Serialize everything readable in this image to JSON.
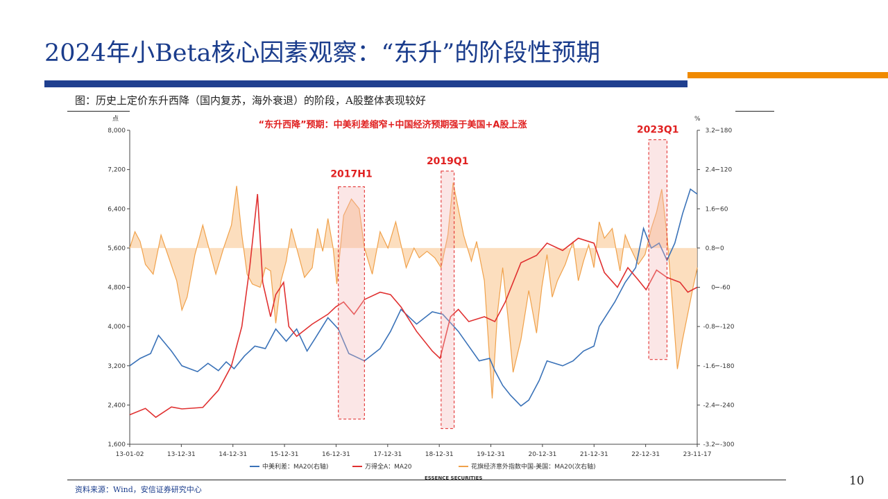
{
  "slide": {
    "title": "2024年小Beta核心因素观察：“东升”的阶段性预期",
    "caption": "图：历史上定价东升西降（国内复苏，海外衰退）的阶段，A股整体表现较好",
    "source": "资料来源：Wind，安信证券研究中心",
    "page_number": "10",
    "watermark": "ESSENCE SECURITIES"
  },
  "colors": {
    "title": "#1a3c8c",
    "blue_bar": "#1f3f8f",
    "orange_bar": "#f08a00",
    "spread_line": "#3a72b8",
    "index_line": "#e03030",
    "citi_line": "#f0a14a",
    "citi_fill": "#fbd3a8",
    "annotation": "#e02020"
  },
  "chart_data": {
    "type": "line",
    "headline": "“东升西降”预期：中美利差缩窄+中国经济预期强于美国+A股上涨",
    "left_axis": {
      "unit": "点",
      "ticks": [
        "1,600",
        "2,400",
        "3,200",
        "4,000",
        "4,800",
        "5,600",
        "6,400",
        "7,200",
        "8,000"
      ],
      "range": [
        1600,
        8000
      ]
    },
    "right_axis_1": {
      "unit": "%",
      "ticks": [
        "-3.2",
        "-2.4",
        "-1.6",
        "-0.8",
        "0",
        "0.8",
        "1.6",
        "2.4",
        "3.2"
      ],
      "range": [
        -3.2,
        3.2
      ]
    },
    "right_axis_2": {
      "ticks": [
        "-300",
        "-240",
        "-180",
        "-120",
        "-60",
        "0",
        "60",
        "120",
        "180"
      ],
      "range": [
        -300,
        180
      ]
    },
    "x_ticks": [
      "13-01-02",
      "13-12-31",
      "14-12-31",
      "15-12-31",
      "16-12-31",
      "17-12-31",
      "18-12-31",
      "19-12-31",
      "20-12-31",
      "21-12-31",
      "22-12-31",
      "23-11-17"
    ],
    "highlights": [
      {
        "label": "2017H1",
        "from": 2017.0,
        "to": 2017.5
      },
      {
        "label": "2019Q1",
        "from": 2018.97,
        "to": 2019.22
      },
      {
        "label": "2023Q1",
        "from": 2022.95,
        "to": 2023.3
      }
    ],
    "series": [
      {
        "name": "中美利差：MA20(右轴)",
        "axis": "right1",
        "points": [
          [
            2013.0,
            -1.6
          ],
          [
            2013.2,
            -1.45
          ],
          [
            2013.4,
            -1.35
          ],
          [
            2013.55,
            -0.98
          ],
          [
            2013.8,
            -1.3
          ],
          [
            2014.0,
            -1.6
          ],
          [
            2014.3,
            -1.72
          ],
          [
            2014.5,
            -1.55
          ],
          [
            2014.7,
            -1.7
          ],
          [
            2014.85,
            -1.52
          ],
          [
            2015.0,
            -1.66
          ],
          [
            2015.2,
            -1.4
          ],
          [
            2015.4,
            -1.2
          ],
          [
            2015.6,
            -1.25
          ],
          [
            2015.8,
            -0.85
          ],
          [
            2016.0,
            -1.1
          ],
          [
            2016.2,
            -0.85
          ],
          [
            2016.4,
            -1.3
          ],
          [
            2016.55,
            -1.05
          ],
          [
            2016.8,
            -0.62
          ],
          [
            2017.0,
            -0.85
          ],
          [
            2017.2,
            -1.35
          ],
          [
            2017.5,
            -1.5
          ],
          [
            2017.8,
            -1.25
          ],
          [
            2018.0,
            -0.9
          ],
          [
            2018.2,
            -0.45
          ],
          [
            2018.5,
            -0.75
          ],
          [
            2018.8,
            -0.5
          ],
          [
            2019.0,
            -0.55
          ],
          [
            2019.3,
            -0.9
          ],
          [
            2019.5,
            -1.2
          ],
          [
            2019.7,
            -1.5
          ],
          [
            2019.9,
            -1.45
          ],
          [
            2020.0,
            -1.7
          ],
          [
            2020.15,
            -2.0
          ],
          [
            2020.3,
            -2.2
          ],
          [
            2020.5,
            -2.42
          ],
          [
            2020.65,
            -2.3
          ],
          [
            2020.85,
            -1.9
          ],
          [
            2021.0,
            -1.5
          ],
          [
            2021.3,
            -1.6
          ],
          [
            2021.5,
            -1.5
          ],
          [
            2021.7,
            -1.3
          ],
          [
            2021.9,
            -1.2
          ],
          [
            2022.0,
            -0.8
          ],
          [
            2022.3,
            -0.3
          ],
          [
            2022.5,
            0.1
          ],
          [
            2022.7,
            0.4
          ],
          [
            2022.85,
            1.2
          ],
          [
            2023.0,
            0.8
          ],
          [
            2023.15,
            0.9
          ],
          [
            2023.3,
            0.55
          ],
          [
            2023.45,
            0.9
          ],
          [
            2023.6,
            1.5
          ],
          [
            2023.75,
            2.0
          ],
          [
            2023.88,
            1.9
          ]
        ]
      },
      {
        "name": "万得全A：MA20",
        "axis": "left",
        "points": [
          [
            2013.0,
            2200
          ],
          [
            2013.3,
            2330
          ],
          [
            2013.5,
            2150
          ],
          [
            2013.8,
            2360
          ],
          [
            2014.0,
            2320
          ],
          [
            2014.4,
            2350
          ],
          [
            2014.7,
            2700
          ],
          [
            2014.95,
            3200
          ],
          [
            2015.15,
            4000
          ],
          [
            2015.3,
            5200
          ],
          [
            2015.45,
            6700
          ],
          [
            2015.55,
            4900
          ],
          [
            2015.7,
            4200
          ],
          [
            2015.8,
            4650
          ],
          [
            2015.95,
            4900
          ],
          [
            2016.05,
            4000
          ],
          [
            2016.2,
            3800
          ],
          [
            2016.5,
            4050
          ],
          [
            2016.8,
            4250
          ],
          [
            2016.95,
            4400
          ],
          [
            2017.1,
            4500
          ],
          [
            2017.3,
            4250
          ],
          [
            2017.5,
            4550
          ],
          [
            2017.8,
            4700
          ],
          [
            2018.0,
            4650
          ],
          [
            2018.2,
            4400
          ],
          [
            2018.5,
            3900
          ],
          [
            2018.8,
            3500
          ],
          [
            2018.95,
            3350
          ],
          [
            2019.15,
            4200
          ],
          [
            2019.3,
            4350
          ],
          [
            2019.5,
            4100
          ],
          [
            2019.8,
            4200
          ],
          [
            2020.0,
            4100
          ],
          [
            2020.2,
            4500
          ],
          [
            2020.5,
            5300
          ],
          [
            2020.8,
            5450
          ],
          [
            2021.0,
            5700
          ],
          [
            2021.3,
            5550
          ],
          [
            2021.6,
            5800
          ],
          [
            2021.9,
            5700
          ],
          [
            2022.1,
            5100
          ],
          [
            2022.35,
            4800
          ],
          [
            2022.55,
            5200
          ],
          [
            2022.75,
            4950
          ],
          [
            2022.9,
            4750
          ],
          [
            2023.1,
            5150
          ],
          [
            2023.3,
            5000
          ],
          [
            2023.55,
            4900
          ],
          [
            2023.7,
            4700
          ],
          [
            2023.88,
            4800
          ]
        ]
      },
      {
        "name": "花旗经济意外指数中国-美国：MA20(次右轴)",
        "axis": "right2",
        "fill_to_zero": true,
        "points": [
          [
            2013.0,
            0
          ],
          [
            2013.1,
            25
          ],
          [
            2013.2,
            10
          ],
          [
            2013.3,
            -25
          ],
          [
            2013.45,
            -40
          ],
          [
            2013.6,
            20
          ],
          [
            2013.75,
            -15
          ],
          [
            2013.9,
            -50
          ],
          [
            2014.0,
            -95
          ],
          [
            2014.1,
            -75
          ],
          [
            2014.25,
            -10
          ],
          [
            2014.4,
            35
          ],
          [
            2014.5,
            5
          ],
          [
            2014.65,
            -40
          ],
          [
            2014.8,
            0
          ],
          [
            2014.95,
            35
          ],
          [
            2015.05,
            95
          ],
          [
            2015.15,
            20
          ],
          [
            2015.25,
            -40
          ],
          [
            2015.35,
            -55
          ],
          [
            2015.5,
            -60
          ],
          [
            2015.6,
            -30
          ],
          [
            2015.7,
            -35
          ],
          [
            2015.8,
            -115
          ],
          [
            2015.9,
            -50
          ],
          [
            2016.0,
            -20
          ],
          [
            2016.1,
            30
          ],
          [
            2016.2,
            0
          ],
          [
            2016.35,
            -45
          ],
          [
            2016.5,
            -30
          ],
          [
            2016.6,
            30
          ],
          [
            2016.7,
            -5
          ],
          [
            2016.8,
            45
          ],
          [
            2016.9,
            0
          ],
          [
            2016.97,
            -55
          ],
          [
            2017.1,
            50
          ],
          [
            2017.25,
            75
          ],
          [
            2017.4,
            60
          ],
          [
            2017.5,
            0
          ],
          [
            2017.65,
            -40
          ],
          [
            2017.8,
            25
          ],
          [
            2017.95,
            0
          ],
          [
            2018.1,
            40
          ],
          [
            2018.2,
            5
          ],
          [
            2018.3,
            -30
          ],
          [
            2018.45,
            0
          ],
          [
            2018.55,
            -15
          ],
          [
            2018.7,
            -5
          ],
          [
            2018.85,
            -15
          ],
          [
            2018.97,
            -30
          ],
          [
            2019.1,
            20
          ],
          [
            2019.2,
            100
          ],
          [
            2019.3,
            60
          ],
          [
            2019.4,
            20
          ],
          [
            2019.55,
            -20
          ],
          [
            2019.65,
            10
          ],
          [
            2019.8,
            -50
          ],
          [
            2019.95,
            -230
          ],
          [
            2020.05,
            -100
          ],
          [
            2020.15,
            -30
          ],
          [
            2020.25,
            -105
          ],
          [
            2020.35,
            -190
          ],
          [
            2020.5,
            -140
          ],
          [
            2020.65,
            -65
          ],
          [
            2020.8,
            -130
          ],
          [
            2020.9,
            -60
          ],
          [
            2021.0,
            -10
          ],
          [
            2021.1,
            -75
          ],
          [
            2021.2,
            -50
          ],
          [
            2021.35,
            -25
          ],
          [
            2021.5,
            10
          ],
          [
            2021.6,
            -50
          ],
          [
            2021.7,
            -20
          ],
          [
            2021.8,
            5
          ],
          [
            2021.9,
            -30
          ],
          [
            2022.0,
            40
          ],
          [
            2022.1,
            15
          ],
          [
            2022.25,
            30
          ],
          [
            2022.4,
            -35
          ],
          [
            2022.5,
            20
          ],
          [
            2022.6,
            0
          ],
          [
            2022.75,
            -25
          ],
          [
            2022.88,
            -10
          ],
          [
            2023.0,
            30
          ],
          [
            2023.1,
            55
          ],
          [
            2023.2,
            90
          ],
          [
            2023.3,
            20
          ],
          [
            2023.4,
            -80
          ],
          [
            2023.5,
            -185
          ],
          [
            2023.6,
            -140
          ],
          [
            2023.7,
            -100
          ],
          [
            2023.8,
            -60
          ],
          [
            2023.88,
            -30
          ]
        ]
      }
    ],
    "legend": [
      "中美利差：MA20(右轴)",
      "万得全A：MA20",
      "花旗经济意外指数中国-美国：MA20(次右轴)"
    ],
    "legend_position": "bottom"
  }
}
